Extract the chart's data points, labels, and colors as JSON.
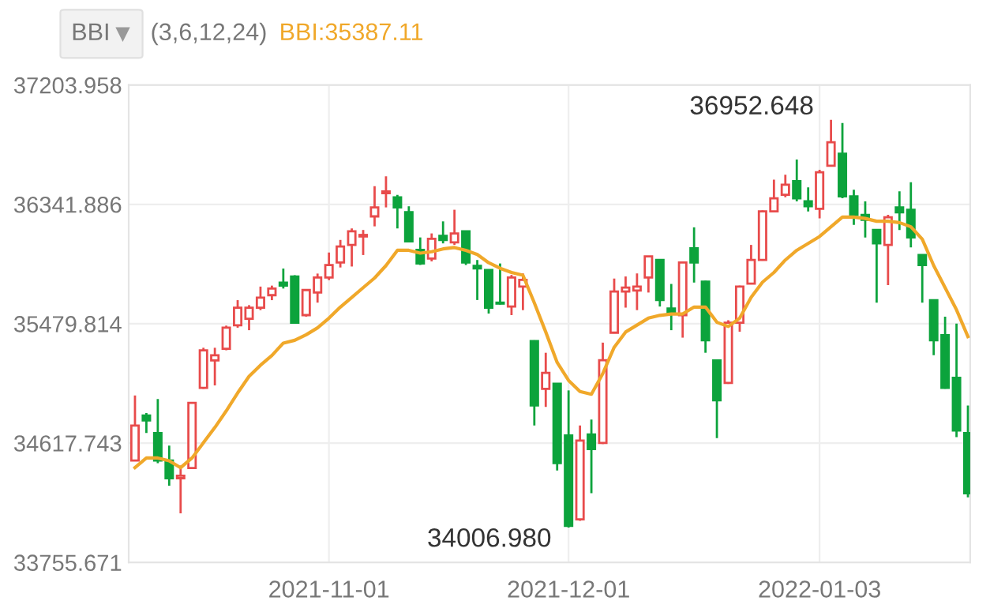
{
  "chart_data": {
    "type": "candlestick",
    "title": "BBI",
    "subtitle": "(3,6,12,24)",
    "categories": [
      null,
      null,
      null,
      null,
      null,
      null,
      null,
      null,
      null,
      null,
      null,
      null,
      null,
      null,
      null,
      null,
      null,
      "2021-11-01",
      null,
      null,
      null,
      null,
      null,
      null,
      null,
      null,
      null,
      null,
      null,
      null,
      null,
      null,
      null,
      null,
      null,
      null,
      null,
      null,
      "2021-12-01",
      null,
      null,
      null,
      null,
      null,
      null,
      null,
      null,
      null,
      null,
      null,
      null,
      null,
      null,
      null,
      null,
      null,
      null,
      null,
      null,
      null,
      "2022-01-03",
      null,
      null,
      null,
      null,
      null,
      null,
      null,
      null,
      null,
      null,
      null,
      null,
      null
    ],
    "ylim": [
      33755.671,
      37203.958
    ],
    "yticks": [
      33755.671,
      34617.743,
      35479.814,
      36341.886,
      37203.958
    ],
    "grid": true,
    "annotations": [
      "36952.648",
      "34006.980"
    ],
    "series": [
      {
        "colors": [
          "#e84b4b",
          "#0ca33c",
          "#0ca33c",
          "#0ca33c",
          "#e84b4b",
          "#e84b4b",
          "#e84b4b",
          "#e84b4b",
          "#e84b4b",
          "#e84b4b",
          "#e84b4b",
          "#e84b4b",
          "#e84b4b",
          "#0ca33c",
          "#0ca33c",
          "#e84b4b",
          "#e84b4b",
          "#e84b4b",
          "#e84b4b",
          "#e84b4b",
          "#e84b4b",
          "#e84b4b",
          "#e84b4b",
          "#0ca33c",
          "#0ca33c",
          "#0ca33c",
          "#e84b4b",
          "#0ca33c",
          "#e84b4b",
          "#0ca33c",
          "#0ca33c",
          "#0ca33c",
          "#0ca33c",
          "#e84b4b",
          "#e84b4b",
          "#0ca33c",
          "#e84b4b",
          "#0ca33c",
          "#0ca33c",
          "#e84b4b",
          "#0ca33c",
          "#e84b4b",
          "#e84b4b",
          "#e84b4b",
          "#e84b4b",
          "#e84b4b",
          "#0ca33c",
          "#0ca33c",
          "#e84b4b",
          "#0ca33c",
          "#0ca33c",
          "#0ca33c",
          "#e84b4b",
          "#e84b4b",
          "#e84b4b",
          "#e84b4b",
          "#e84b4b",
          "#e84b4b",
          "#0ca33c",
          "#0ca33c",
          "#e84b4b",
          "#e84b4b",
          "#0ca33c",
          "#0ca33c",
          "#0ca33c",
          "#0ca33c",
          "#e84b4b",
          "#0ca33c",
          "#0ca33c",
          "#0ca33c",
          "#0ca33c",
          "#0ca33c",
          "#0ca33c",
          "#0ca33c"
        ],
        "ohlc": [
          [
            34491,
            34962,
            34491,
            34744
          ],
          [
            34817,
            34835,
            34690,
            34781
          ],
          [
            34690,
            34936,
            34473,
            34491
          ],
          [
            34491,
            34600,
            34310,
            34364
          ],
          [
            34364,
            34455,
            34110,
            34382
          ],
          [
            34437,
            34915,
            34429,
            34908
          ],
          [
            35016,
            35306,
            35009,
            35288
          ],
          [
            35215,
            35306,
            35034,
            35252
          ],
          [
            35299,
            35466,
            35288,
            35451
          ],
          [
            35469,
            35650,
            35451,
            35596
          ],
          [
            35516,
            35614,
            35433,
            35596
          ],
          [
            35596,
            35748,
            35578,
            35668
          ],
          [
            35686,
            35755,
            35650,
            35734
          ],
          [
            35777,
            35878,
            35734,
            35755
          ],
          [
            35821,
            35830,
            35480,
            35487
          ],
          [
            35542,
            35730,
            35531,
            35723
          ],
          [
            35705,
            35842,
            35632,
            35813
          ],
          [
            35813,
            35994,
            35795,
            35904
          ],
          [
            35922,
            36085,
            35886,
            36038
          ],
          [
            36049,
            36168,
            35893,
            36147
          ],
          [
            36110,
            36157,
            35976,
            36121
          ],
          [
            36255,
            36473,
            36183,
            36320
          ],
          [
            36422,
            36545,
            36320,
            36436
          ],
          [
            36393,
            36411,
            36168,
            36320
          ],
          [
            36285,
            36328,
            36067,
            36074
          ],
          [
            36013,
            36103,
            35904,
            35915
          ],
          [
            35951,
            36132,
            35930,
            36093
          ],
          [
            36114,
            36219,
            36060,
            36085
          ],
          [
            36067,
            36303,
            36049,
            36132
          ],
          [
            36147,
            36150,
            35904,
            35922
          ],
          [
            35897,
            35940,
            35651,
            35879
          ],
          [
            35868,
            35870,
            35553,
            35596
          ],
          [
            35632,
            35915,
            35618,
            35625
          ],
          [
            35604,
            35832,
            35542,
            35814
          ],
          [
            35748,
            35843,
            35578,
            35796
          ],
          [
            35354,
            35360,
            34745,
            34890
          ],
          [
            35009,
            35270,
            34879,
            35125
          ],
          [
            35046,
            35050,
            34419,
            34473
          ],
          [
            34672,
            34998,
            34006.98,
            34020
          ],
          [
            34067,
            34745,
            34056,
            34636
          ],
          [
            34680,
            34788,
            34256,
            34575
          ],
          [
            34618,
            35343,
            34610,
            35216
          ],
          [
            35415,
            35806,
            35410,
            35712
          ],
          [
            35712,
            35821,
            35596,
            35741
          ],
          [
            35720,
            35843,
            35578,
            35748
          ],
          [
            35814,
            35970,
            35705,
            35966
          ],
          [
            35940,
            35945,
            35604,
            35651
          ],
          [
            35589,
            35767,
            35433,
            35553
          ],
          [
            35542,
            35930,
            35379,
            35922
          ],
          [
            36024,
            36176,
            35777,
            35922
          ],
          [
            35784,
            35790,
            35270,
            35360
          ],
          [
            35215,
            35220,
            34654,
            34926
          ],
          [
            35052,
            35505,
            35045,
            35487
          ],
          [
            35487,
            35755,
            35422,
            35748
          ],
          [
            35770,
            36049,
            35765,
            35940
          ],
          [
            35940,
            36298,
            35935,
            36291
          ],
          [
            36291,
            36520,
            36284,
            36386
          ],
          [
            36411,
            36556,
            36393,
            36484
          ],
          [
            36509,
            36665,
            36364,
            36386
          ],
          [
            36364,
            36465,
            36291,
            36328
          ],
          [
            36310,
            36592,
            36241,
            36574
          ],
          [
            36621,
            36952.648,
            36615,
            36791
          ],
          [
            36708,
            36930,
            36386,
            36400
          ],
          [
            36400,
            36447,
            36194,
            36266
          ],
          [
            36266,
            36364,
            36103,
            36230
          ],
          [
            36157,
            36160,
            35632,
            36060
          ],
          [
            36049,
            36266,
            35759,
            36248
          ],
          [
            36320,
            36436,
            36157,
            36284
          ],
          [
            36302,
            36502,
            36031,
            36103
          ],
          [
            35976,
            35980,
            35632,
            35904
          ],
          [
            35650,
            35655,
            35252,
            35360
          ],
          [
            35397,
            35531,
            35010,
            35016
          ],
          [
            35089,
            35480,
            34661,
            34708
          ],
          [
            34690,
            34889,
            34226,
            34255
          ]
        ]
      },
      {
        "type": "line",
        "name": "BBI:35387.11",
        "color": "#f0a82a",
        "values": [
          34440,
          34510,
          34510,
          34490,
          34440,
          34510,
          34620,
          34730,
          34850,
          34980,
          35100,
          35180,
          35250,
          35340,
          35360,
          35400,
          35450,
          35520,
          35600,
          35670,
          35740,
          35810,
          35900,
          36010,
          36010,
          35990,
          36000,
          36020,
          36030,
          36010,
          35980,
          35920,
          35880,
          35850,
          35830,
          35630,
          35420,
          35200,
          35070,
          34990,
          34970,
          35120,
          35310,
          35420,
          35470,
          35520,
          35540,
          35550,
          35550,
          35600,
          35600,
          35490,
          35460,
          35520,
          35670,
          35780,
          35850,
          35940,
          36010,
          36060,
          36110,
          36180,
          36250,
          36250,
          36240,
          36220,
          36220,
          36210,
          36180,
          36090,
          35900,
          35740,
          35580,
          35387.11
        ]
      }
    ]
  }
}
